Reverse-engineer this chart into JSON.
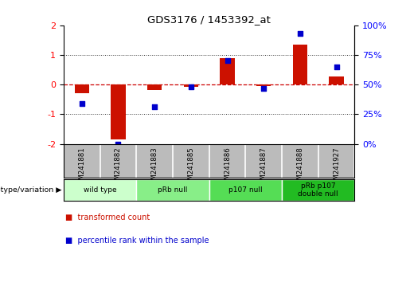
{
  "title": "GDS3176 / 1453392_at",
  "samples": [
    "GSM241881",
    "GSM241882",
    "GSM241883",
    "GSM241885",
    "GSM241886",
    "GSM241887",
    "GSM241888",
    "GSM241927"
  ],
  "red_bars": [
    -0.28,
    -1.85,
    -0.18,
    -0.07,
    0.88,
    -0.05,
    1.35,
    0.28
  ],
  "blue_dots": [
    -0.65,
    -2.0,
    -0.75,
    -0.08,
    0.82,
    -0.12,
    1.72,
    0.6
  ],
  "ylim_left": [
    -2,
    2
  ],
  "yticks_left": [
    -2,
    -1,
    0,
    1,
    2
  ],
  "groups": [
    {
      "label": "wild type",
      "start": 0,
      "end": 2,
      "color": "#ccffcc"
    },
    {
      "label": "pRb null",
      "start": 2,
      "end": 4,
      "color": "#88ee88"
    },
    {
      "label": "p107 null",
      "start": 4,
      "end": 6,
      "color": "#55dd55"
    },
    {
      "label": "pRb p107\ndouble null",
      "start": 6,
      "end": 8,
      "color": "#22bb22"
    }
  ],
  "bar_color": "#cc1100",
  "dot_color": "#0000cc",
  "zero_line_color": "#cc0000",
  "dotted_line_color": "#333333",
  "legend_red_label": "transformed count",
  "legend_blue_label": "percentile rank within the sample",
  "background_color": "#ffffff",
  "plot_bg_color": "#ffffff",
  "tick_label_area_color": "#bbbbbb",
  "group_label": "genotype/variation"
}
